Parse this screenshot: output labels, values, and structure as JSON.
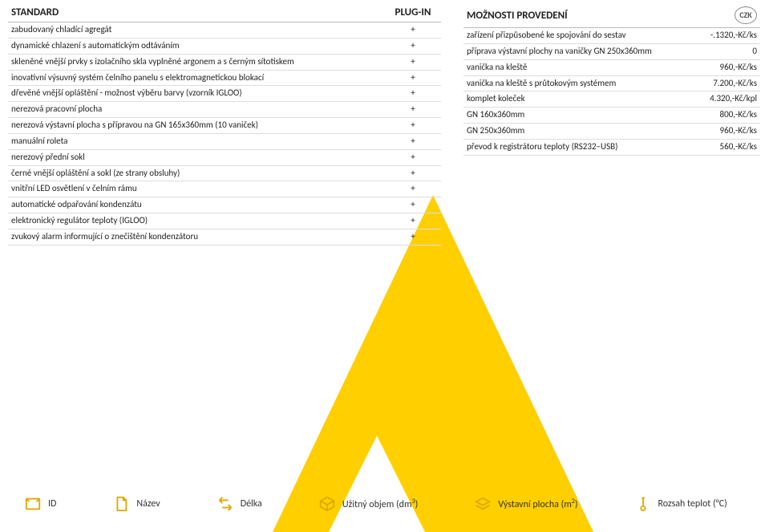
{
  "left": {
    "header1": "STANDARD",
    "header2": "PLUG-IN",
    "rows": [
      {
        "label": "zabudovaný chladící agregát",
        "flag": "+"
      },
      {
        "label": "dynamické chlazení s automatickým odtáváním",
        "flag": "+"
      },
      {
        "label": "skleněné vnější prvky s izolačního skla vyplněné argonem a s černým sítotiskem",
        "flag": "+"
      },
      {
        "label": "inovativní výsuvný systém čelního panelu s elektromagnetickou blokací",
        "flag": "+"
      },
      {
        "label": "dřevěné vnější opláštění  - možnost výběru barvy (vzorník IGLOO)",
        "flag": "+"
      },
      {
        "label": "nerezová pracovní plocha",
        "flag": "+"
      },
      {
        "label": "nerezová výstavní plocha s přípravou na GN 165x360mm (10 vaniček)",
        "flag": "+"
      },
      {
        "label": "manuální roleta",
        "flag": "+"
      },
      {
        "label": "nerezový přední sokl",
        "flag": "+"
      },
      {
        "label": "černé vnější opláštění a sokl (ze strany obsluhy)",
        "flag": "+"
      },
      {
        "label": "vnitřní LED osvětlení v čelním rámu",
        "flag": "+"
      },
      {
        "label": "automatické odpařování kondenzátu",
        "flag": "+"
      },
      {
        "label": "elektronický regulátor teploty (IGLOO)",
        "flag": "+"
      },
      {
        "label": "zvukový alarm informující o znečištění kondenzátoru",
        "flag": "+"
      }
    ]
  },
  "right": {
    "header": "MOŽNOSTI PROVEDENÍ",
    "currency": "CZK",
    "rows": [
      {
        "label": "zařízení přizpůsobené ke spojování do sestav",
        "price": "-.1320,-Kč/ks"
      },
      {
        "label": "příprava výstavní plochy na vaničky GN 250x360mm",
        "price": "0"
      },
      {
        "label": "vanička na kleště",
        "price": "960,-Kč/ks"
      },
      {
        "label": "vanička na kleště s průtokovým systémem",
        "price": "7.200,-Kč/ks"
      },
      {
        "label": "komplet koleček",
        "price": "4.320,-Kč/kpl"
      },
      {
        "label": "GN 160x360mm",
        "price": "800,-Kč/ks"
      },
      {
        "label": "GN 250x360mm",
        "price": "960,-Kč/ks"
      },
      {
        "label": "převod k registrátoru teploty (RS232–USB)",
        "price": "560,-Kč/ks"
      }
    ]
  },
  "footer": {
    "id": "ID",
    "name": "Název",
    "length": "Délka",
    "volume_pre": "Užitný objem (dm",
    "volume_sup": "3",
    "volume_post": ")",
    "area_pre": "Výstavní plocha (m",
    "area_sup": "2",
    "area_post": ")",
    "temp": "Rozsah teplot (°C)"
  }
}
